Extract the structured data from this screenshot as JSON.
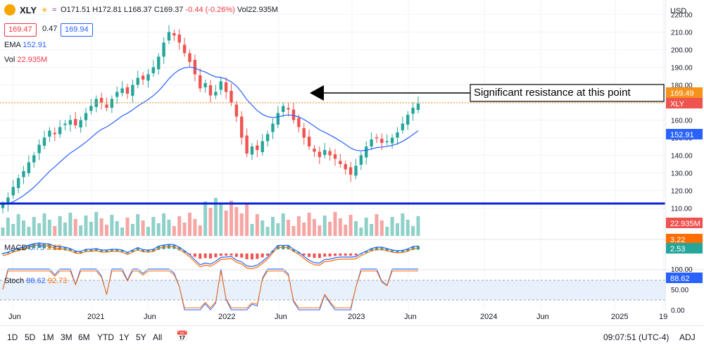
{
  "symbol": "XLY",
  "icons": [
    "sun-icon",
    "wave-icon"
  ],
  "ohlc": {
    "o_label": "O",
    "open": "171.51",
    "h_label": "H",
    "high": "172.81",
    "l_label": "L",
    "low": "168.37",
    "c_label": "C",
    "close": "169.37",
    "change": "-0.44 (-0.26%)",
    "vol_label": "Vol",
    "volume": "22.935M"
  },
  "bid": "169.47",
  "spread": "0.47",
  "ask": "169.94",
  "ema": {
    "label": "EMA",
    "value": "152.91"
  },
  "vol": {
    "label": "Vol",
    "value": "22.935M"
  },
  "macd": {
    "label": "MACD",
    "v1": "5.75",
    "v2": "3.22"
  },
  "stoch": {
    "label": "Stoch",
    "v1": "88.62",
    "v2": "92.73"
  },
  "currency": "USD",
  "annotation": "Significant resistance at this point",
  "price_axis": [
    "220.00",
    "210.00",
    "200.00",
    "190.00",
    "180.00",
    "170.00",
    "160.00",
    "150.00",
    "140.00",
    "130.00",
    "120.00",
    "110.00"
  ],
  "stoch_axis": [
    "100.00",
    "50.00",
    "0.00"
  ],
  "badges": {
    "last": "169.49",
    "ticker": "XLY",
    "ema": "152.91",
    "vol": "22.935M",
    "macd1": "3.22",
    "macd2": "2.53",
    "stoch": "88.62"
  },
  "time_axis": [
    "Jun",
    "2021",
    "Jun",
    "2022",
    "Jun",
    "2023",
    "Jun",
    "2024",
    "Jun",
    "2025",
    "19"
  ],
  "timeframes": [
    "1D",
    "5D",
    "1M",
    "3M",
    "6M",
    "YTD",
    "1Y",
    "5Y",
    "All"
  ],
  "clock": "09:07:51 (UTC-4)",
  "adj": "ADJ",
  "colors": {
    "up": "#26a69a",
    "down": "#ef5350",
    "ema": "#2962ff",
    "support": "#0a22d6",
    "macd": "#2962ff",
    "signal": "#ff6d00",
    "stoch_k": "#2962ff",
    "stoch_d": "#ff6d00"
  },
  "chart_data": {
    "type": "candlestick",
    "note_values": "weekly closes, estimated",
    "closes": [
      112,
      116,
      122,
      127,
      131,
      136,
      140,
      146,
      150,
      154,
      152,
      156,
      158,
      160,
      157,
      160,
      164,
      168,
      172,
      170,
      167,
      172,
      176,
      178,
      175,
      180,
      184,
      183,
      186,
      190,
      196,
      204,
      210,
      208,
      204,
      198,
      193,
      186,
      178,
      181,
      174,
      176,
      182,
      176,
      170,
      162,
      150,
      141,
      145,
      143,
      148,
      152,
      158,
      164,
      168,
      166,
      160,
      156,
      150,
      145,
      142,
      139,
      143,
      140,
      138,
      135,
      132,
      129,
      134,
      140,
      145,
      149,
      150,
      147,
      148,
      150,
      153,
      158,
      163,
      167,
      169.37
    ],
    "ema_label_value": 152.91,
    "support_level": 118,
    "resistance_level": 173,
    "price_range": [
      105,
      225
    ],
    "stoch_range": [
      0,
      100
    ]
  }
}
